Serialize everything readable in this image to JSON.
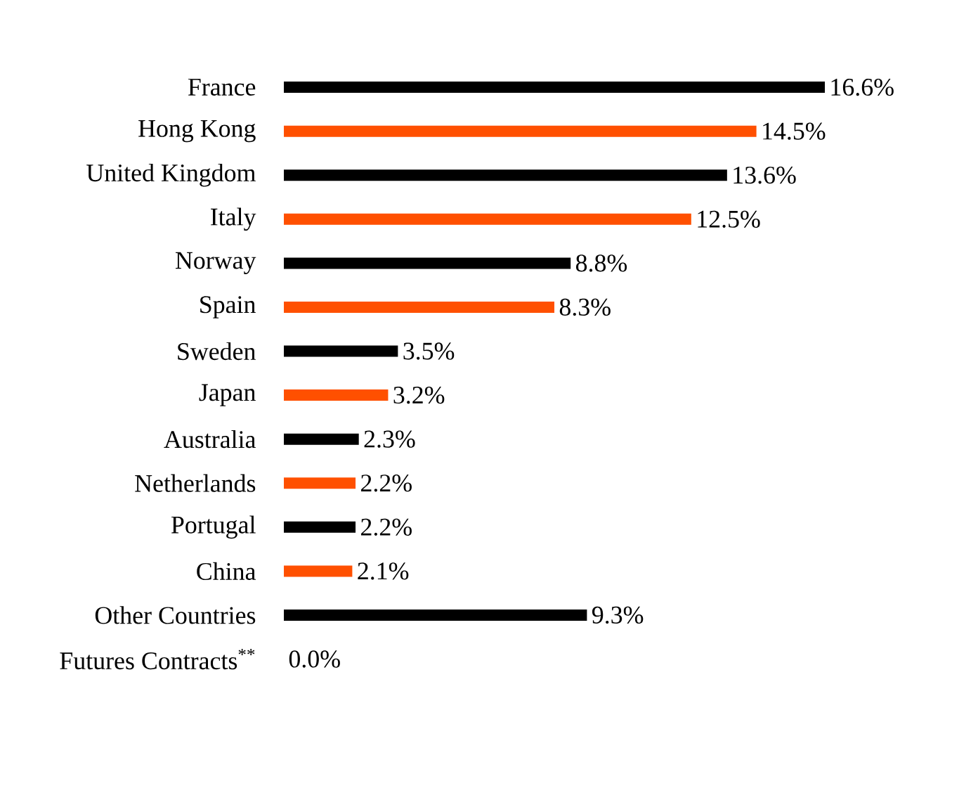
{
  "chart_data": {
    "type": "bar",
    "orientation": "horizontal",
    "categories": [
      "France",
      "Hong Kong",
      "United Kingdom",
      "Italy",
      "Norway",
      "Spain",
      "Sweden",
      "Japan",
      "Australia",
      "Netherlands",
      "Portugal",
      "China",
      "Other Countries",
      "Futures Contracts$^{**}$"
    ],
    "values": [
      16.6,
      14.5,
      13.6,
      12.5,
      8.8,
      8.3,
      3.5,
      3.2,
      2.3,
      2.2,
      2.2,
      2.1,
      9.3,
      0.0
    ],
    "value_labels": [
      "16.6%",
      "14.5%",
      "13.6%",
      "12.5%",
      "8.8%",
      "8.3%",
      "3.5%",
      "3.2%",
      "2.3%",
      "2.2%",
      "2.2%",
      "2.1%",
      "9.3%",
      "0.0%"
    ],
    "colors": [
      "#000000",
      "#ff5000",
      "#000000",
      "#ff5000",
      "#000000",
      "#ff5000",
      "#000000",
      "#ff5000",
      "#000000",
      "#ff5000",
      "#000000",
      "#ff5000",
      "#000000",
      "#ff5000"
    ]
  }
}
